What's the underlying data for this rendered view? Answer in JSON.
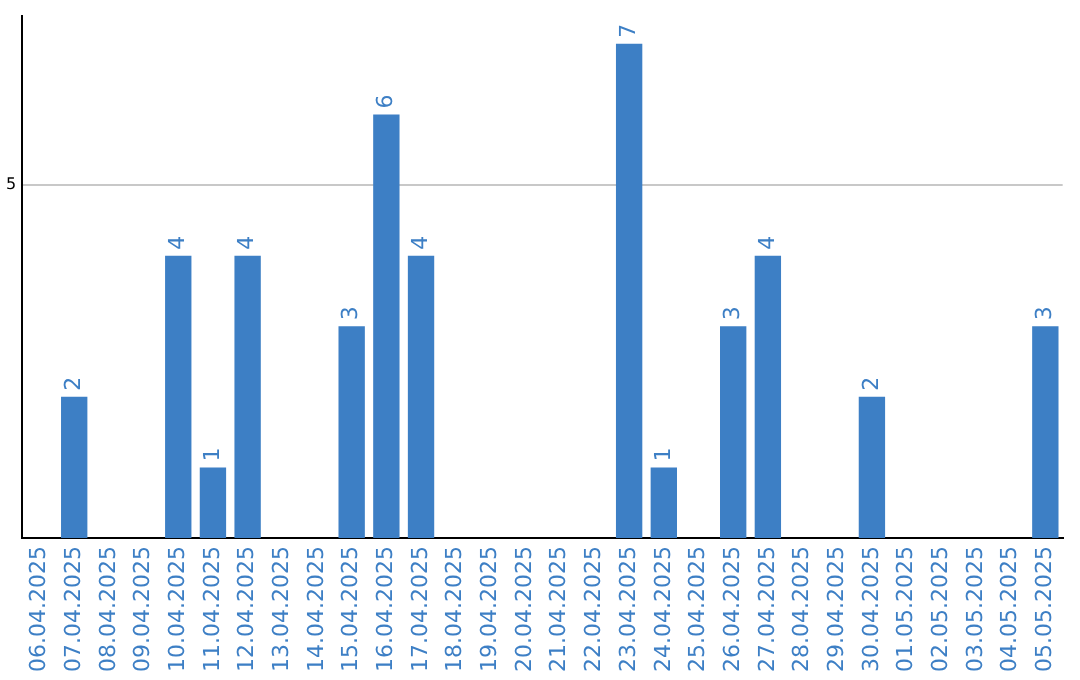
{
  "chart_data": {
    "type": "bar",
    "categories": [
      "06.04.2025",
      "07.04.2025",
      "08.04.2025",
      "09.04.2025",
      "10.04.2025",
      "11.04.2025",
      "12.04.2025",
      "13.04.2025",
      "14.04.2025",
      "15.04.2025",
      "16.04.2025",
      "17.04.2025",
      "18.04.2025",
      "19.04.2025",
      "20.04.2025",
      "21.04.2025",
      "22.04.2025",
      "23.04.2025",
      "24.04.2025",
      "25.04.2025",
      "26.04.2025",
      "27.04.2025",
      "28.04.2025",
      "29.04.2025",
      "30.04.2025",
      "01.05.2025",
      "02.05.2025",
      "03.05.2025",
      "04.05.2025",
      "05.05.2025"
    ],
    "values": [
      0,
      2,
      0,
      0,
      4,
      1,
      4,
      0,
      0,
      3,
      6,
      4,
      0,
      0,
      0,
      0,
      0,
      7,
      1,
      0,
      3,
      4,
      0,
      0,
      2,
      0,
      0,
      0,
      0,
      3
    ],
    "value_labels": [
      null,
      "2",
      null,
      null,
      "4",
      "1",
      "4",
      null,
      null,
      "3",
      "6",
      "4",
      null,
      null,
      null,
      null,
      null,
      "7",
      "1",
      null,
      "3",
      "4",
      null,
      null,
      "2",
      null,
      null,
      null,
      null,
      "3"
    ],
    "color": "#3d7fc5",
    "ylim": [
      0,
      7.4
    ],
    "yticks": [
      5
    ],
    "grid": "y",
    "legend": false
  }
}
